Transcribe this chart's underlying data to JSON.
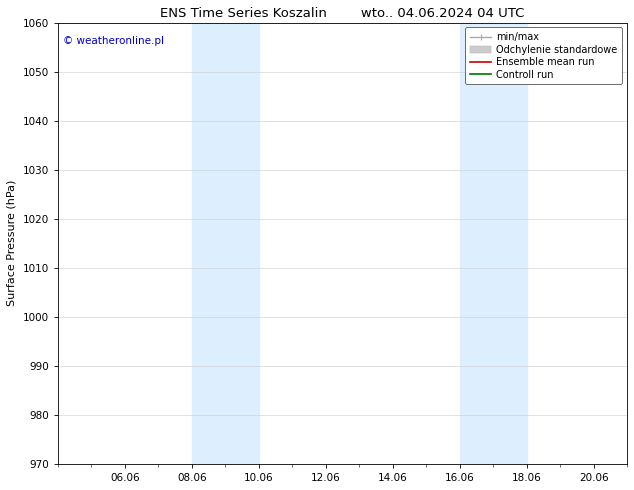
{
  "title_left": "ENS Time Series Koszalin",
  "title_right": "wto.. 04.06.2024 04 UTC",
  "ylabel": "Surface Pressure (hPa)",
  "ylim": [
    970,
    1060
  ],
  "yticks": [
    970,
    980,
    990,
    1000,
    1010,
    1020,
    1030,
    1040,
    1050,
    1060
  ],
  "xtick_labels": [
    "06.06",
    "08.06",
    "10.06",
    "12.06",
    "14.06",
    "16.06",
    "18.06",
    "20.06"
  ],
  "xtick_positions": [
    2,
    4,
    6,
    8,
    10,
    12,
    14,
    16
  ],
  "xlim": [
    0,
    17
  ],
  "shaded_bands": [
    {
      "x_start": 4,
      "x_end": 6,
      "color": "#ddeeff"
    },
    {
      "x_start": 12,
      "x_end": 14,
      "color": "#ddeeff"
    }
  ],
  "watermark_text": "© weatheronline.pl",
  "watermark_color": "#0000cc",
  "legend_entries": [
    {
      "label": "min/max",
      "color": "#aaaaaa",
      "lw": 1.0,
      "ls": "-",
      "type": "errorbar"
    },
    {
      "label": "Odchylenie standardowe",
      "color": "#cccccc",
      "lw": 6,
      "ls": "-",
      "type": "patch"
    },
    {
      "label": "Ensemble mean run",
      "color": "#cc0000",
      "lw": 1.2,
      "ls": "-",
      "type": "line"
    },
    {
      "label": "Controll run",
      "color": "#007700",
      "lw": 1.2,
      "ls": "-",
      "type": "line"
    }
  ],
  "bg_color": "#ffffff",
  "plot_bg_color": "#ffffff",
  "title_fontsize": 9.5,
  "tick_fontsize": 7.5,
  "ylabel_fontsize": 8,
  "watermark_fontsize": 7.5,
  "legend_fontsize": 7.0
}
